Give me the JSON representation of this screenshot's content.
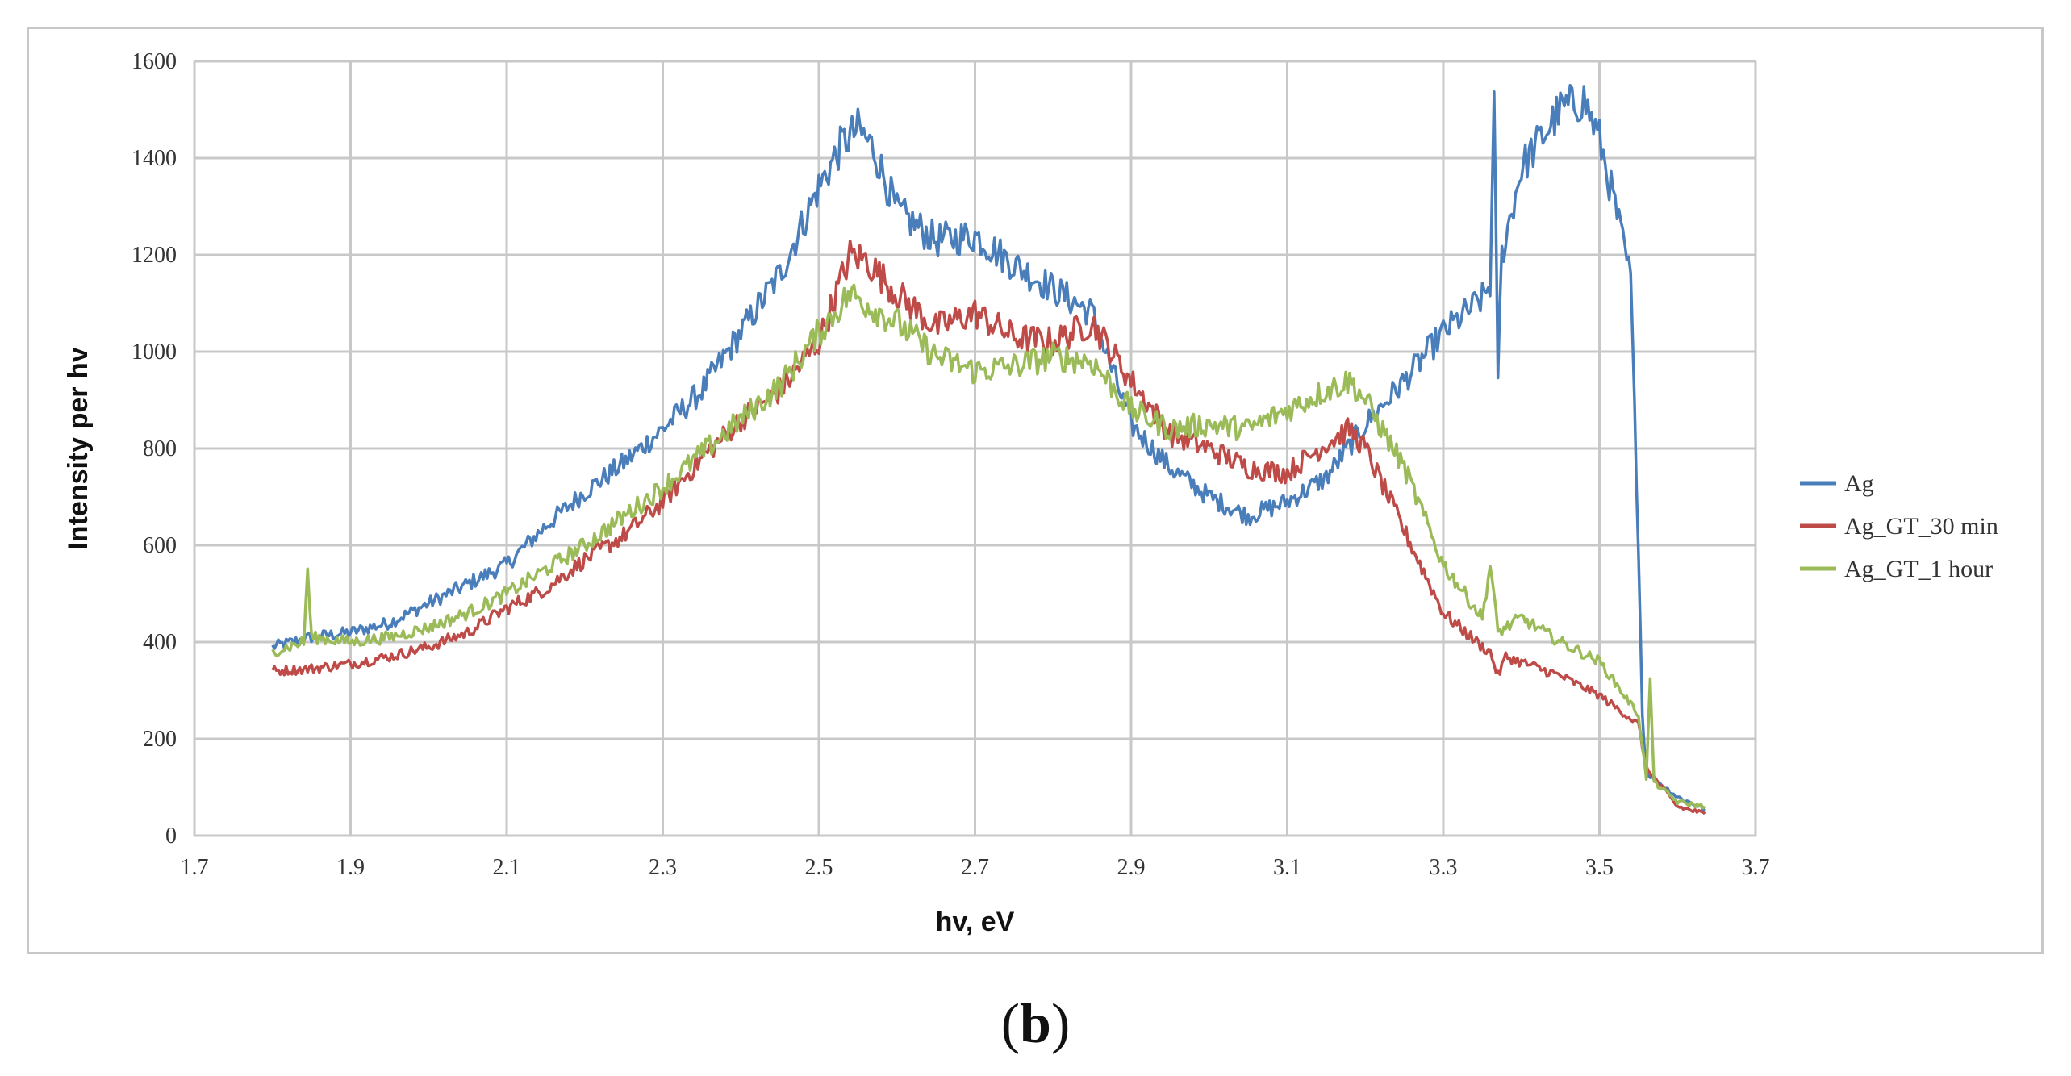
{
  "chart_data": {
    "type": "line",
    "xlabel": "hv, eV",
    "ylabel": "Intensity per hv",
    "xlim": [
      1.7,
      3.7
    ],
    "ylim": [
      0,
      1600
    ],
    "xticks": [
      "1.7",
      "1.9",
      "2.1",
      "2.3",
      "2.5",
      "2.7",
      "2.9",
      "3.1",
      "3.3",
      "3.5",
      "3.7"
    ],
    "yticks": [
      "0",
      "200",
      "400",
      "600",
      "800",
      "1000",
      "1200",
      "1400",
      "1600"
    ],
    "grid": true,
    "legend_position": "right",
    "series": [
      {
        "name": "Ag",
        "color": "#4a7ebb",
        "x": [
          1.8,
          1.85,
          1.9,
          1.95,
          2.0,
          2.05,
          2.1,
          2.15,
          2.2,
          2.25,
          2.3,
          2.35,
          2.4,
          2.45,
          2.5,
          2.53,
          2.55,
          2.57,
          2.6,
          2.65,
          2.7,
          2.75,
          2.8,
          2.85,
          2.9,
          2.95,
          3.0,
          3.05,
          3.1,
          3.15,
          3.2,
          3.25,
          3.3,
          3.35,
          3.36,
          3.365,
          3.37,
          3.375,
          3.4,
          3.45,
          3.48,
          3.5,
          3.52,
          3.54,
          3.55,
          3.555,
          3.56,
          3.6,
          3.635
        ],
        "y": [
          390,
          410,
          420,
          440,
          480,
          520,
          560,
          640,
          710,
          770,
          840,
          920,
          1040,
          1160,
          1340,
          1430,
          1460,
          1420,
          1290,
          1230,
          1240,
          1180,
          1130,
          1080,
          850,
          760,
          700,
          660,
          690,
          740,
          850,
          940,
          1040,
          1110,
          1140,
          1500,
          960,
          1200,
          1380,
          1500,
          1520,
          1440,
          1300,
          1150,
          600,
          250,
          130,
          80,
          55
        ]
      },
      {
        "name": "Ag_GT_30 min",
        "color": "#be4b48",
        "x": [
          1.8,
          1.85,
          1.9,
          1.95,
          2.0,
          2.05,
          2.1,
          2.15,
          2.2,
          2.25,
          2.3,
          2.35,
          2.4,
          2.45,
          2.5,
          2.54,
          2.56,
          2.6,
          2.65,
          2.7,
          2.75,
          2.8,
          2.85,
          2.9,
          2.95,
          3.0,
          3.05,
          3.1,
          3.15,
          3.18,
          3.2,
          3.25,
          3.3,
          3.35,
          3.36,
          3.37,
          3.38,
          3.45,
          3.5,
          3.55,
          3.56,
          3.6,
          3.635
        ],
        "y": [
          340,
          345,
          355,
          370,
          390,
          420,
          470,
          510,
          570,
          620,
          690,
          780,
          860,
          920,
          1020,
          1200,
          1190,
          1120,
          1050,
          1080,
          1030,
          1020,
          1060,
          940,
          830,
          800,
          760,
          750,
          810,
          840,
          800,
          630,
          460,
          390,
          380,
          330,
          370,
          330,
          290,
          230,
          140,
          60,
          45
        ]
      },
      {
        "name": "Ag_GT_1 hour",
        "color": "#9bbb59",
        "x": [
          1.8,
          1.84,
          1.845,
          1.85,
          1.9,
          1.95,
          2.0,
          2.05,
          2.1,
          2.15,
          2.2,
          2.25,
          2.3,
          2.35,
          2.4,
          2.45,
          2.5,
          2.54,
          2.56,
          2.6,
          2.65,
          2.7,
          2.75,
          2.8,
          2.85,
          2.9,
          2.95,
          3.0,
          3.05,
          3.1,
          3.15,
          3.18,
          3.2,
          3.25,
          3.3,
          3.35,
          3.36,
          3.37,
          3.4,
          3.45,
          3.5,
          3.55,
          3.56,
          3.565,
          3.57,
          3.6,
          3.635
        ],
        "y": [
          380,
          400,
          550,
          410,
          400,
          410,
          430,
          460,
          500,
          550,
          600,
          660,
          720,
          790,
          860,
          930,
          1040,
          1120,
          1100,
          1060,
          990,
          960,
          970,
          990,
          980,
          880,
          840,
          850,
          840,
          880,
          920,
          940,
          900,
          760,
          560,
          450,
          560,
          420,
          450,
          400,
          360,
          250,
          120,
          320,
          110,
          70,
          60
        ]
      }
    ]
  },
  "caption": {
    "open": "(",
    "letter": "b",
    "close": ")"
  }
}
